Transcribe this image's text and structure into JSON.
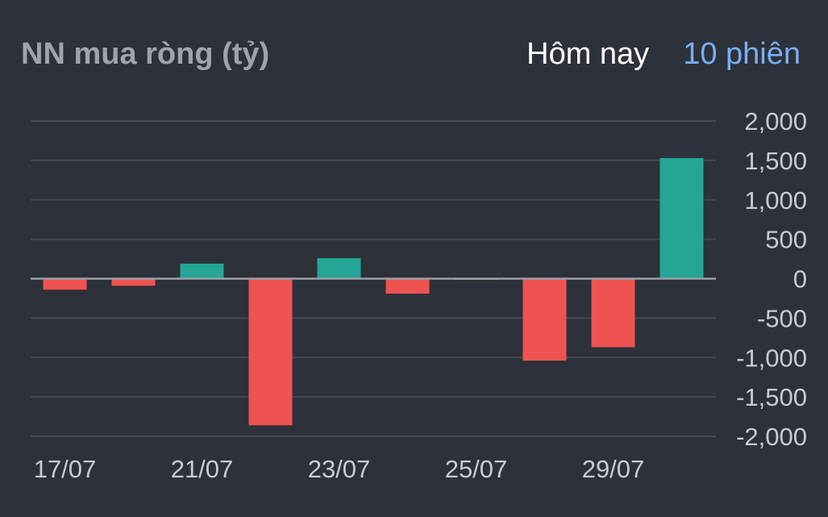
{
  "header": {
    "title": "NN mua ròng (tỷ)",
    "tabs": [
      {
        "label": "Hôm nay",
        "active": false
      },
      {
        "label": "10 phiên",
        "active": true
      }
    ]
  },
  "colors": {
    "background": "#2d3139",
    "positive": "#25a596",
    "negative": "#ef5350",
    "grid": "#454a54",
    "zero_line": "#9aa0a8",
    "active_tab": "#7aaef5"
  },
  "chart_data": {
    "type": "bar",
    "title": "NN mua ròng (tỷ)",
    "xlabel": "",
    "ylabel": "",
    "ylim": [
      -2000,
      2000
    ],
    "grid": true,
    "y_axis_position": "right",
    "y_ticks": [
      2000,
      1500,
      1000,
      500,
      0,
      -500,
      -1000,
      -1500,
      -2000
    ],
    "y_tick_labels": [
      "2,000",
      "1,500",
      "1,000",
      "500",
      "0",
      "-500",
      "-1,000",
      "-1,500",
      "-2,000"
    ],
    "x_tick_labels": [
      {
        "bar_index": 0,
        "label": "17/07"
      },
      {
        "bar_index": 2,
        "label": "21/07"
      },
      {
        "bar_index": 4,
        "label": "23/07"
      },
      {
        "bar_index": 6,
        "label": "25/07"
      },
      {
        "bar_index": 8,
        "label": "29/07"
      }
    ],
    "values": [
      -140,
      -90,
      190,
      -1860,
      260,
      -190,
      -10,
      -1040,
      -870,
      1530
    ]
  }
}
